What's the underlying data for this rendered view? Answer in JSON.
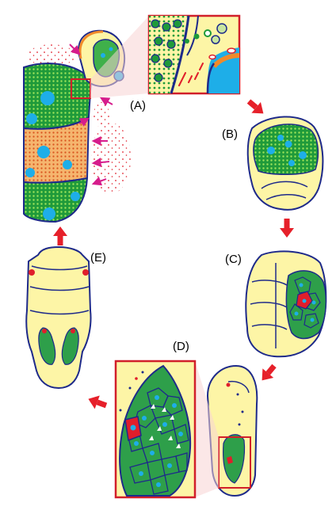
{
  "panels": [
    {
      "id": "A",
      "label": "(A)"
    },
    {
      "id": "B",
      "label": "(B)"
    },
    {
      "id": "C",
      "label": "(C)"
    },
    {
      "id": "D",
      "label": "(D)"
    },
    {
      "id": "E",
      "label": "(E)"
    }
  ],
  "colors": {
    "yolk": "#fdf5a6",
    "outline": "#1e2a8a",
    "green_tissue": "#1f9a3a",
    "green_dots": "#0d6b1f",
    "orange_tissue": "#f2a35a",
    "cyan_nucleus": "#1eaee8",
    "red_accent": "#e01e2b",
    "magenta_arrow": "#d61c8c",
    "pink_box": "#f0a8a8",
    "zoom_box": "#d11f2a",
    "cycle_arrow": "#e6202a"
  },
  "icons": [
    "cycle-arrow-icon",
    "magenta-arrow-icon"
  ]
}
